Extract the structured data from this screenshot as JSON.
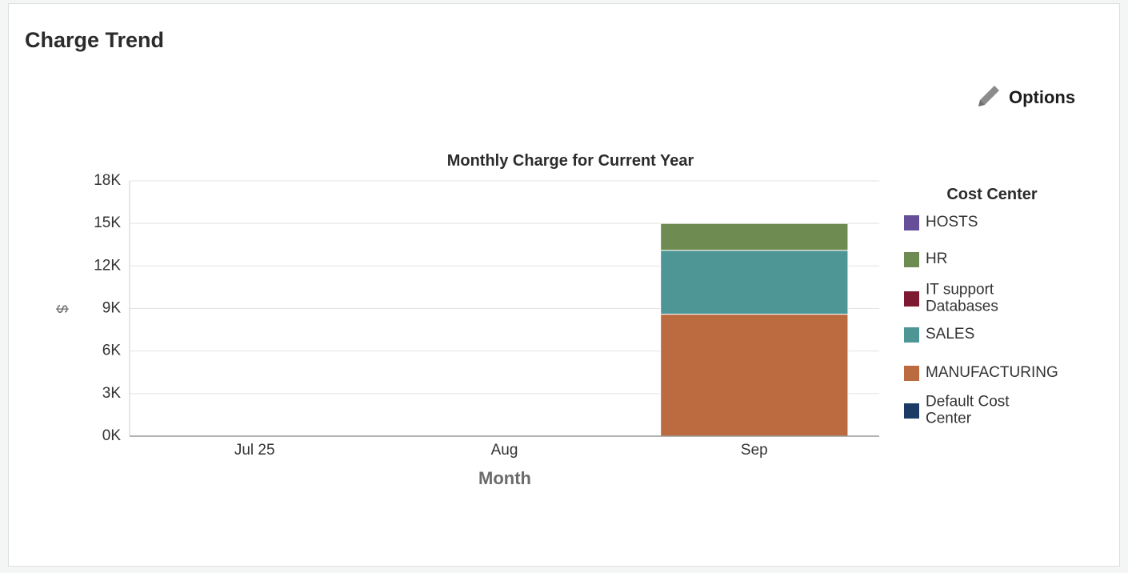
{
  "panel": {
    "title": "Charge Trend",
    "options_label": "Options",
    "options_icon": "pencil-icon"
  },
  "chart_data": {
    "type": "bar",
    "stacked": true,
    "title": "Monthly Charge for Current Year",
    "xlabel": "Month",
    "ylabel": "$",
    "categories": [
      "Jul 25",
      "Aug",
      "Sep"
    ],
    "ylim": [
      0,
      18000
    ],
    "yticks": [
      "0K",
      "3K",
      "6K",
      "9K",
      "12K",
      "15K",
      "18K"
    ],
    "grid": true,
    "legend": {
      "title": "Cost Center",
      "placement": "right",
      "entries": [
        {
          "label": [
            "HOSTS"
          ],
          "color": "#664e9a"
        },
        {
          "label": [
            "HR"
          ],
          "color": "#6e8b51"
        },
        {
          "label": [
            "IT support",
            "Databases"
          ],
          "color": "#7d1a32"
        },
        {
          "label": [
            "SALES"
          ],
          "color": "#4e9596"
        },
        {
          "label": [
            "MANUFACTURING"
          ],
          "color": "#bc6b41"
        },
        {
          "label": [
            "Default Cost",
            "Center"
          ],
          "color": "#1b3b67"
        }
      ]
    },
    "series": [
      {
        "name": "MANUFACTURING",
        "color": "#bc6b41",
        "values": [
          0,
          0,
          8600
        ]
      },
      {
        "name": "SALES",
        "color": "#4e9596",
        "values": [
          0,
          0,
          4500
        ]
      },
      {
        "name": "HR",
        "color": "#6e8b51",
        "values": [
          0,
          0,
          1900
        ]
      }
    ]
  }
}
